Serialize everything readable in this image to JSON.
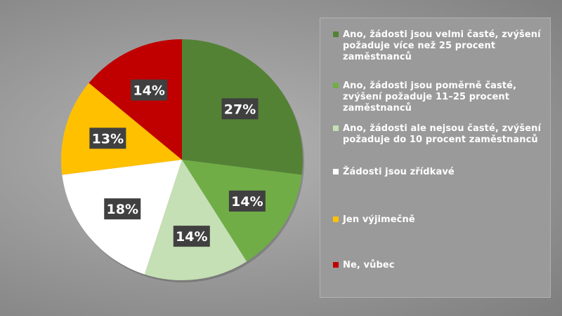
{
  "chart_data": {
    "type": "pie",
    "title": "",
    "categories": [
      "Ano, žádosti jsou velmi časté, zvýšení požaduje více než 25 procent zaměstnanců",
      "Ano, žádosti jsou poměrně časté, zvýšení požaduje 11–25 procent zaměstnanců",
      "Ano, žádosti ale nejsou časté, zvýšení požaduje do 10 procent zaměstnanců",
      "Žádosti jsou zřídkavé",
      "Jen výjimečně",
      "Ne, vůbec"
    ],
    "values": [
      27,
      14,
      14,
      18,
      13,
      14
    ],
    "labels": [
      "27%",
      "14%",
      "14%",
      "18%",
      "13%",
      "14%"
    ],
    "colors": [
      "#548235",
      "#70ad47",
      "#c5e0b4",
      "#ffffff",
      "#ffc000",
      "#c00000"
    ],
    "legend_position": "right",
    "start_angle": "12 o'clock, clockwise"
  }
}
